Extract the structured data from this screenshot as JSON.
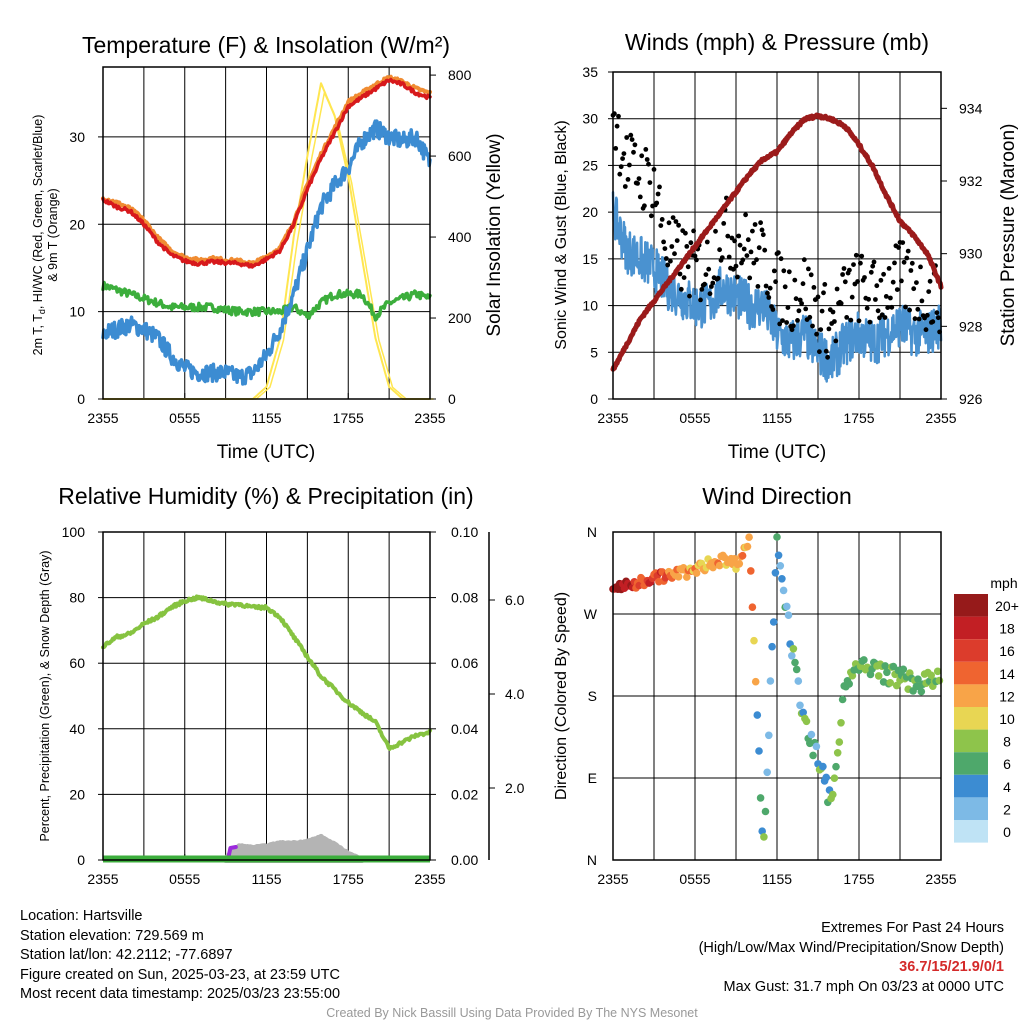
{
  "colors": {
    "red": "#d7191c",
    "green": "#3cae3c",
    "orange": "#f08c32",
    "blue": "#3c8cd2",
    "yellow": "#ffe650",
    "black": "#000000",
    "maroon": "#9b1b1b",
    "rh": "#86c340",
    "precip": "#3cae3c",
    "snow": "#b4b4b4",
    "precip_purple": "#9b2adc"
  },
  "x_ticks": [
    "2355",
    "0555",
    "1155",
    "1755",
    "2355"
  ],
  "panels": {
    "temperature": {
      "title": "Temperature (F) & Insolation (W/m²)",
      "xlabel": "Time (UTC)",
      "ylabel_left": [
        "2m T, T",
        "d",
        ", HI/WC (Red, Green, Scarlet/Blue)",
        "& 9m T (Orange)"
      ],
      "ylabel_right": "Solar Insolation (Yellow)"
    },
    "winds": {
      "title": "Winds (mph) & Pressure (mb)",
      "xlabel": "Time (UTC)",
      "ylabel_left": "Sonic Wind & Gust (Blue, Black)",
      "ylabel_right": "Station Pressure (Maroon)"
    },
    "humidity": {
      "title": "Relative Humidity (%) & Precipitation (in)",
      "ylabel_left": "Percent, Precipitation (Green), & Snow Depth (Gray)"
    },
    "direction": {
      "title": "Wind Direction",
      "ylabel_left": "Direction (Colored By Speed)",
      "colorbar_title": "mph",
      "colorbar_labels": [
        "20+",
        "18",
        "16",
        "14",
        "12",
        "10",
        "8",
        "6",
        "4",
        "2",
        "0"
      ],
      "colorbar_colors": [
        "#961a1a",
        "#c21f24",
        "#dc3c2c",
        "#ef6430",
        "#f8a448",
        "#e8d653",
        "#8ec44b",
        "#4ea86b",
        "#3c8cd2",
        "#7dbae6",
        "#bfe3f5"
      ]
    }
  },
  "chart_data": [
    {
      "type": "line",
      "name": "temperature",
      "x_hours": [
        0,
        24
      ],
      "ylim": [
        0,
        38
      ],
      "ylim_right": [
        0,
        820
      ],
      "yticks": [
        0,
        10,
        20,
        30
      ],
      "yticks_right": [
        0,
        200,
        400,
        600,
        800
      ],
      "series": [
        {
          "key": "temp",
          "x": [
            0,
            1,
            2,
            3,
            4,
            5,
            6,
            7,
            8,
            9,
            10,
            11,
            12,
            13,
            14,
            15,
            16,
            17,
            18,
            19,
            20,
            21,
            22,
            23,
            24
          ],
          "values": [
            22.8,
            22,
            21.5,
            20,
            18,
            16.5,
            15.8,
            15.5,
            15.7,
            15.6,
            15.5,
            15.2,
            16,
            17,
            20,
            24,
            27.5,
            30.5,
            33.5,
            34.5,
            35.5,
            36.5,
            36,
            35,
            34.5
          ]
        },
        {
          "key": "dewpoint",
          "x": [
            0,
            1,
            2,
            3,
            4,
            5,
            6,
            7,
            8,
            9,
            10,
            11,
            12,
            13,
            14,
            15,
            16,
            17,
            18,
            19,
            20,
            21,
            22,
            23,
            24
          ],
          "values": [
            13,
            12.5,
            12,
            11.5,
            11,
            10.5,
            10.5,
            10.5,
            10.5,
            10.2,
            10,
            10,
            10,
            10,
            10.5,
            9.5,
            11,
            12,
            12,
            12,
            9.5,
            11,
            11.5,
            12,
            11.5
          ]
        },
        {
          "key": "windchill",
          "x": [
            0,
            1,
            2,
            3,
            4,
            5,
            6,
            7,
            8,
            9,
            10,
            11,
            12,
            13,
            14,
            15,
            16,
            17,
            18,
            19,
            20,
            21,
            22,
            23,
            24
          ],
          "values": [
            7.5,
            8,
            8.5,
            8,
            7,
            5,
            3.5,
            3,
            3,
            3,
            2.5,
            3,
            5,
            8,
            12,
            17,
            22,
            24.5,
            26.5,
            29.5,
            31,
            30,
            29.5,
            30,
            27
          ]
        },
        {
          "key": "temp9m",
          "x": [
            0,
            1,
            2,
            3,
            4,
            5,
            6,
            7,
            8,
            9,
            10,
            11,
            12,
            13,
            14,
            15,
            16,
            17,
            18,
            19,
            20,
            21,
            22,
            23,
            24
          ],
          "values": [
            23,
            22.5,
            21.8,
            20.5,
            18.5,
            17,
            16.2,
            15.9,
            16.1,
            15.9,
            15.8,
            15.5,
            16.3,
            17.3,
            20.3,
            24.5,
            28,
            31,
            34,
            35,
            36,
            36.8,
            36.3,
            35.5,
            35
          ]
        },
        {
          "key": "insolation",
          "x": [
            0,
            9,
            10,
            11,
            12,
            13,
            14,
            15,
            16,
            17,
            18,
            19,
            20,
            21,
            22,
            23,
            24
          ],
          "values": [
            0,
            0,
            0,
            0,
            30,
            150,
            400,
            600,
            780,
            700,
            550,
            350,
            150,
            30,
            0,
            0,
            0
          ]
        }
      ]
    },
    {
      "type": "line",
      "name": "winds",
      "x_hours": [
        0,
        24
      ],
      "ylim": [
        0,
        35
      ],
      "ylim_right": [
        926,
        935
      ],
      "yticks": [
        0,
        5,
        10,
        15,
        20,
        25,
        30,
        35
      ],
      "yticks_right": [
        926,
        928,
        930,
        932,
        934
      ],
      "series": [
        {
          "key": "wind",
          "x": [
            0,
            1,
            2,
            3,
            4,
            5,
            6,
            7,
            8,
            9,
            10,
            11,
            12,
            13,
            14,
            15,
            16,
            17,
            18,
            19,
            20,
            21,
            22,
            23,
            24
          ],
          "values": [
            20,
            16,
            15,
            14,
            12,
            11,
            10,
            10,
            12,
            11,
            10,
            10,
            7,
            6,
            7,
            5,
            4,
            6,
            7,
            6,
            7,
            8,
            7,
            7,
            8
          ]
        },
        {
          "key": "gust",
          "x": [
            0,
            1,
            2,
            3,
            4,
            5,
            6,
            7,
            8,
            9,
            10,
            11,
            12,
            13,
            14,
            15,
            16,
            17,
            18,
            19,
            20,
            21,
            22,
            23,
            24
          ],
          "values": [
            31,
            25,
            24,
            23,
            16,
            15,
            14,
            14,
            18,
            17,
            16,
            15,
            12,
            11,
            12,
            9,
            8,
            11,
            12,
            11,
            12,
            13,
            12,
            11,
            11
          ]
        },
        {
          "key": "pressure",
          "x": [
            0,
            1,
            2,
            3,
            4,
            5,
            6,
            7,
            8,
            9,
            10,
            11,
            12,
            13,
            14,
            15,
            16,
            17,
            18,
            19,
            20,
            21,
            22,
            23,
            24
          ],
          "values": [
            926.8,
            927.5,
            928.2,
            928.7,
            929.2,
            929.7,
            930.2,
            930.7,
            931.2,
            931.7,
            932.2,
            932.6,
            932.8,
            933.3,
            933.7,
            933.8,
            933.7,
            933.5,
            933.0,
            932.4,
            931.6,
            930.9,
            930.5,
            930.0,
            929.1
          ]
        }
      ]
    },
    {
      "type": "line",
      "name": "humidity",
      "x_hours": [
        0,
        24
      ],
      "ylim": [
        0,
        100
      ],
      "ylim_right": [
        0,
        0.1
      ],
      "yticks": [
        0,
        20,
        40,
        60,
        80,
        100
      ],
      "yticks_right": [
        "0.00",
        "0.02",
        "0.04",
        "0.06",
        "0.08",
        "0.10"
      ],
      "snow_ticks": [
        "2.0",
        "4.0",
        "6.0"
      ],
      "series": [
        {
          "key": "rh",
          "x": [
            0,
            1,
            2,
            3,
            4,
            5,
            6,
            7,
            8,
            9,
            10,
            11,
            12,
            13,
            14,
            15,
            16,
            17,
            18,
            19,
            20,
            21,
            22,
            23,
            24
          ],
          "values": [
            65,
            68,
            69,
            72,
            74,
            77,
            79,
            80,
            79,
            78,
            78,
            77,
            77,
            74,
            68,
            62,
            56,
            52,
            48,
            45,
            42,
            34,
            36,
            38,
            39
          ]
        },
        {
          "key": "precip",
          "x": [
            0,
            24
          ],
          "values": [
            0,
            0
          ]
        },
        {
          "key": "snow",
          "x": [
            9,
            10,
            11,
            12,
            13,
            14,
            15,
            16,
            17,
            18,
            19
          ],
          "values": [
            0.05,
            0.45,
            0.4,
            0.45,
            0.55,
            0.55,
            0.6,
            0.75,
            0.5,
            0.2,
            0
          ]
        }
      ]
    },
    {
      "type": "scatter",
      "name": "direction",
      "ytick_labels": [
        "N",
        "E",
        "S",
        "W",
        "N"
      ],
      "series": [
        {
          "key": "direction",
          "x": [
            0,
            1,
            2,
            3,
            4,
            5,
            6,
            7,
            8,
            9,
            10,
            11,
            12,
            13,
            14,
            15,
            16,
            17,
            18,
            19,
            20,
            21,
            22,
            23,
            24
          ],
          "values": [
            300,
            300,
            305,
            310,
            312,
            315,
            318,
            325,
            330,
            325,
            350,
            5,
            355,
            240,
            150,
            110,
            60,
            200,
            210,
            210,
            205,
            200,
            195,
            195,
            200
          ]
        }
      ]
    }
  ],
  "footer_left": {
    "location": "Location: Hartsville",
    "elevation": "Station elevation: 729.569 m",
    "latlon": "Station lat/lon: 42.2112; -77.6897",
    "created": "Figure created on Sun, 2025-03-23, at 23:59 UTC",
    "recent": "Most recent data timestamp: 2025/03/23 23:55:00"
  },
  "footer_right": {
    "title": "Extremes For Past 24 Hours",
    "subtitle": "(High/Low/Max Wind/Precipitation/Snow Depth)",
    "values": "36.7/15/21.9/0/1",
    "gust": "Max Gust: 31.7 mph On 03/23 at 0000 UTC"
  },
  "credit": "Created By Nick Bassill Using Data Provided By The NYS Mesonet"
}
